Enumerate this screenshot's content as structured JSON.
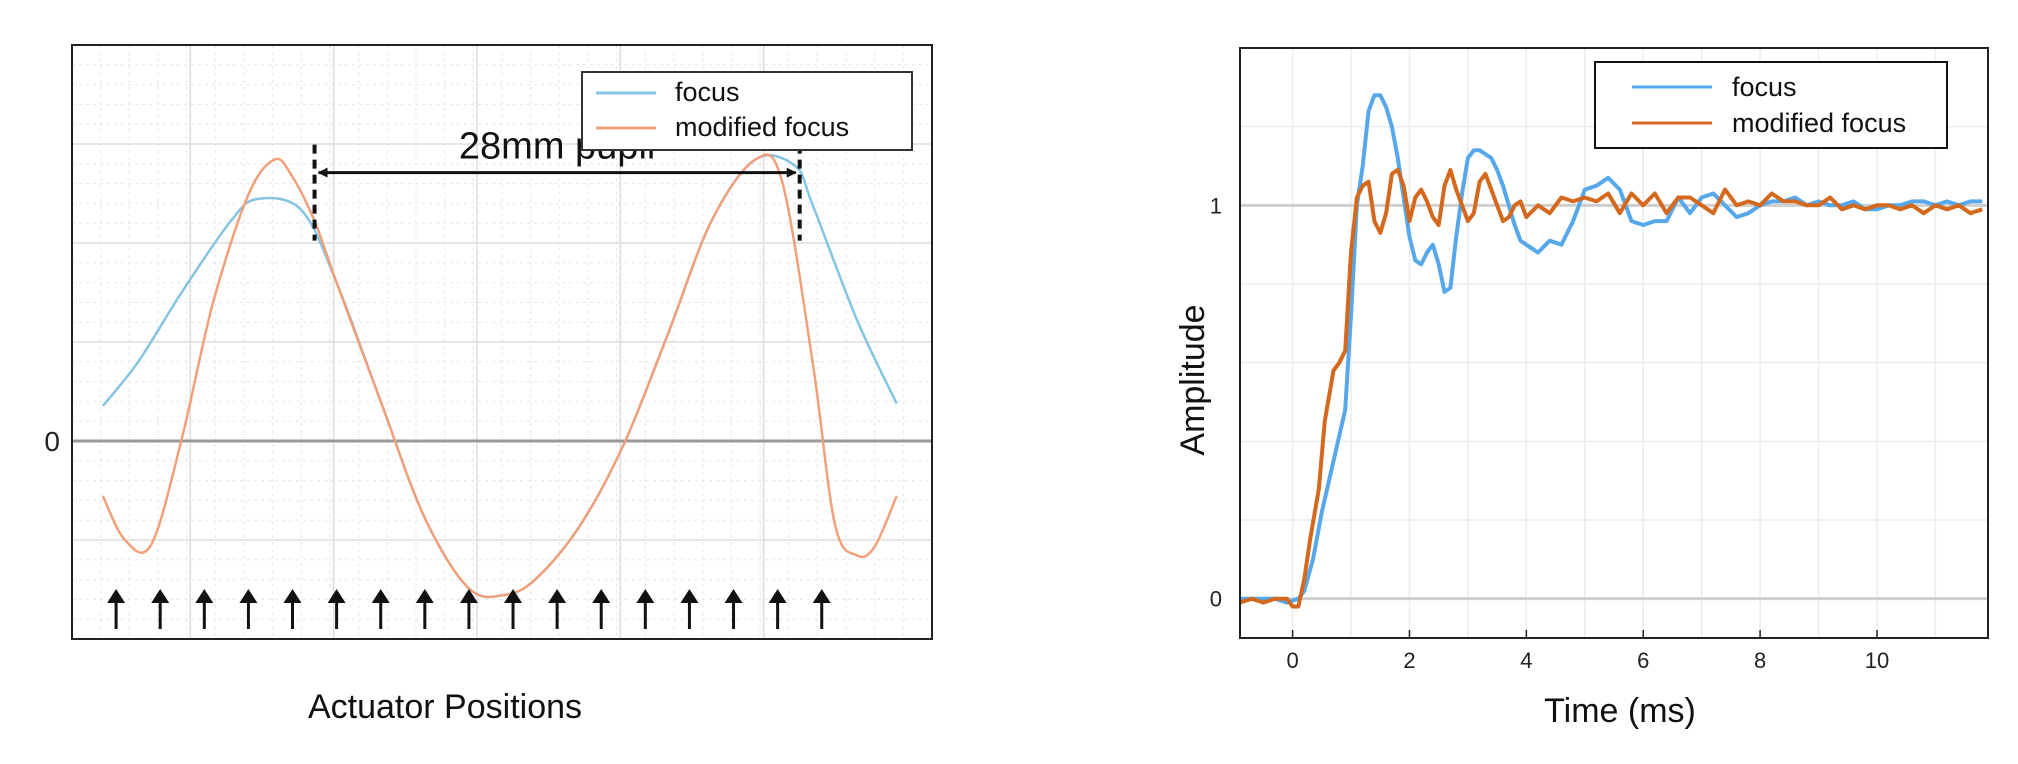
{
  "colors": {
    "focus_left": "#86c4e4",
    "modified_left": "#f0a07a",
    "focus_right": "#56a8ea",
    "modified_right": "#d4691e",
    "zero_line": "#999999",
    "grid_major": "#dddddd",
    "grid_minor": "#e6e6e6"
  },
  "chart_data": [
    {
      "type": "line",
      "xlabel": "Actuator Positions",
      "ylabel": "",
      "ytick_labels": [
        "0"
      ],
      "legend": {
        "position": "top-right",
        "entries": [
          "focus",
          "modified focus"
        ]
      },
      "annotation": {
        "text": "28mm pupil",
        "x_start": 4.5,
        "x_end": 15.5
      },
      "grid": true,
      "xlim": [
        -1,
        18.5
      ],
      "ylim": [
        -0.9,
        1.8
      ],
      "actuator_x": [
        0,
        1,
        2,
        3,
        4,
        5,
        6,
        7,
        8,
        9,
        10,
        11,
        12,
        13,
        14,
        15,
        16
      ],
      "series": [
        {
          "name": "focus",
          "x": [
            -0.3,
            0.5,
            1.5,
            2.6,
            3.2,
            4.2,
            5.0,
            6.0,
            7.0,
            8.0,
            8.8,
            9.5,
            10.5,
            11.5,
            12.5,
            13.5,
            14.5,
            15.4,
            15.8,
            16.8,
            17.7
          ],
          "y": [
            0.16,
            0.36,
            0.68,
            1.0,
            1.1,
            1.05,
            0.72,
            0.18,
            -0.35,
            -0.67,
            -0.7,
            -0.63,
            -0.39,
            -0.02,
            0.48,
            1.0,
            1.28,
            1.25,
            1.07,
            0.55,
            0.17
          ]
        },
        {
          "name": "modified focus",
          "x": [
            -0.3,
            0.2,
            0.8,
            1.5,
            2.2,
            3.0,
            3.6,
            4.0,
            4.5,
            5.0,
            6.0,
            7.0,
            8.0,
            8.8,
            9.5,
            10.5,
            11.5,
            12.5,
            13.5,
            14.5,
            15.1,
            15.8,
            16.3,
            16.8,
            17.2,
            17.7
          ],
          "y": [
            -0.25,
            -0.45,
            -0.47,
            0.02,
            0.63,
            1.12,
            1.28,
            1.2,
            1.0,
            0.72,
            0.18,
            -0.35,
            -0.67,
            -0.7,
            -0.63,
            -0.39,
            -0.02,
            0.48,
            1.0,
            1.28,
            1.18,
            0.35,
            -0.38,
            -0.52,
            -0.48,
            -0.25
          ]
        }
      ]
    },
    {
      "type": "line",
      "xlabel": "Time  (ms)",
      "ylabel": "Amplitude",
      "xlim": [
        -0.9,
        11.9
      ],
      "ylim": [
        -0.1,
        1.4
      ],
      "xticks": [
        0,
        2,
        4,
        6,
        8,
        10
      ],
      "xtick_labels": [
        "0",
        "2",
        "4",
        "6",
        "8",
        "10"
      ],
      "yticks": [
        0,
        1
      ],
      "ytick_labels": [
        "0",
        "1"
      ],
      "grid": true,
      "legend": {
        "position": "top-right",
        "entries": [
          "focus",
          "modified focus"
        ]
      },
      "series": [
        {
          "name": "focus",
          "x": [
            -0.9,
            -0.7,
            -0.5,
            -0.3,
            -0.1,
            0.1,
            0.2,
            0.35,
            0.5,
            0.7,
            0.9,
            1.0,
            1.1,
            1.2,
            1.3,
            1.4,
            1.5,
            1.6,
            1.7,
            1.8,
            1.9,
            2.0,
            2.1,
            2.2,
            2.3,
            2.4,
            2.5,
            2.6,
            2.7,
            2.8,
            2.9,
            3.0,
            3.1,
            3.2,
            3.3,
            3.4,
            3.5,
            3.6,
            3.7,
            3.8,
            3.9,
            4.0,
            4.2,
            4.4,
            4.6,
            4.8,
            5.0,
            5.2,
            5.4,
            5.6,
            5.8,
            6.0,
            6.2,
            6.4,
            6.6,
            6.8,
            7.0,
            7.2,
            7.4,
            7.6,
            7.8,
            8.0,
            8.2,
            8.4,
            8.6,
            8.8,
            9.0,
            9.2,
            9.4,
            9.6,
            9.8,
            10.0,
            10.2,
            10.4,
            10.6,
            10.8,
            11.0,
            11.2,
            11.4,
            11.6,
            11.8
          ],
          "y": [
            0.0,
            0.0,
            0.0,
            0.0,
            -0.01,
            0.0,
            0.02,
            0.1,
            0.22,
            0.35,
            0.48,
            0.72,
            1.0,
            1.1,
            1.24,
            1.28,
            1.28,
            1.25,
            1.2,
            1.12,
            1.02,
            0.92,
            0.86,
            0.85,
            0.88,
            0.9,
            0.85,
            0.78,
            0.79,
            0.92,
            1.03,
            1.12,
            1.14,
            1.14,
            1.13,
            1.12,
            1.09,
            1.05,
            1.0,
            0.95,
            0.91,
            0.9,
            0.88,
            0.91,
            0.9,
            0.96,
            1.04,
            1.05,
            1.07,
            1.04,
            0.96,
            0.95,
            0.96,
            0.96,
            1.02,
            0.98,
            1.02,
            1.03,
            1.0,
            0.97,
            0.98,
            1.0,
            1.01,
            1.01,
            1.02,
            1.0,
            1.01,
            1.0,
            1.0,
            1.01,
            0.99,
            0.99,
            1.0,
            1.0,
            1.01,
            1.01,
            1.0,
            1.01,
            1.0,
            1.01,
            1.01
          ]
        },
        {
          "name": "modified focus",
          "x": [
            -0.9,
            -0.7,
            -0.5,
            -0.3,
            -0.1,
            0.0,
            0.1,
            0.2,
            0.3,
            0.45,
            0.55,
            0.7,
            0.8,
            0.9,
            1.0,
            1.1,
            1.2,
            1.3,
            1.4,
            1.5,
            1.6,
            1.7,
            1.8,
            1.9,
            2.0,
            2.1,
            2.2,
            2.3,
            2.4,
            2.5,
            2.6,
            2.7,
            2.8,
            2.9,
            3.0,
            3.1,
            3.2,
            3.3,
            3.4,
            3.5,
            3.6,
            3.7,
            3.8,
            3.9,
            4.0,
            4.2,
            4.4,
            4.6,
            4.8,
            5.0,
            5.2,
            5.4,
            5.6,
            5.8,
            6.0,
            6.2,
            6.4,
            6.6,
            6.8,
            7.0,
            7.2,
            7.4,
            7.6,
            7.8,
            8.0,
            8.2,
            8.4,
            8.6,
            8.8,
            9.0,
            9.2,
            9.4,
            9.6,
            9.8,
            10.0,
            10.2,
            10.4,
            10.6,
            10.8,
            11.0,
            11.2,
            11.4,
            11.6,
            11.8
          ],
          "y": [
            -0.01,
            0.0,
            -0.01,
            0.0,
            0.0,
            -0.02,
            -0.02,
            0.05,
            0.15,
            0.28,
            0.45,
            0.58,
            0.6,
            0.63,
            0.88,
            1.02,
            1.05,
            1.06,
            0.96,
            0.93,
            0.98,
            1.08,
            1.09,
            1.05,
            0.96,
            1.02,
            1.04,
            1.01,
            0.97,
            0.95,
            1.05,
            1.09,
            1.04,
            1.0,
            0.96,
            0.98,
            1.06,
            1.08,
            1.04,
            1.0,
            0.96,
            0.97,
            1.0,
            1.01,
            0.97,
            1.0,
            0.98,
            1.02,
            1.01,
            1.02,
            1.01,
            1.03,
            0.98,
            1.03,
            1.0,
            1.03,
            0.98,
            1.02,
            1.02,
            1.0,
            0.98,
            1.04,
            1.0,
            1.01,
            1.0,
            1.03,
            1.01,
            1.01,
            1.0,
            1.0,
            1.02,
            0.99,
            1.0,
            0.99,
            1.0,
            1.0,
            0.99,
            1.0,
            0.98,
            1.0,
            0.99,
            1.0,
            0.98,
            0.99
          ]
        }
      ]
    }
  ]
}
